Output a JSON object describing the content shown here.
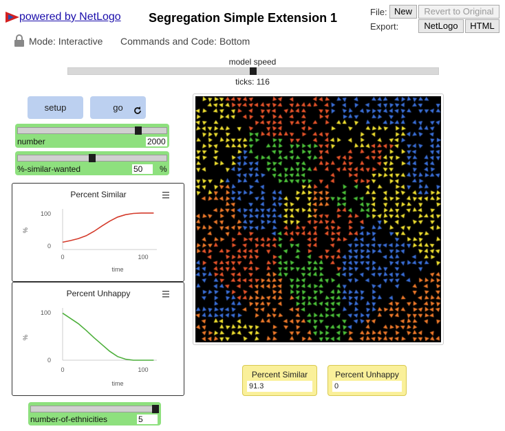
{
  "header": {
    "powered_by": "powered by NetLogo",
    "title": "Segregation Simple Extension 1",
    "file_label": "File:",
    "new_button": "New",
    "revert_button": "Revert to Original",
    "export_label": "Export:",
    "export_netlogo": "NetLogo",
    "export_html": "HTML",
    "mode_text": "Mode: Interactive",
    "commands_text": "Commands and Code: Bottom"
  },
  "speed": {
    "label": "model speed",
    "ticks_text": "ticks: 116",
    "value": 0.5
  },
  "buttons": {
    "setup": "setup",
    "go": "go"
  },
  "sliders": {
    "number": {
      "label": "number",
      "value": "2000",
      "unit": "",
      "fraction": 0.82
    },
    "similar": {
      "label": "%-similar-wanted",
      "value": "50",
      "unit": "%",
      "fraction": 0.5
    },
    "ethnicities": {
      "label": "number-of-ethnicities",
      "value": "5",
      "unit": "",
      "fraction": 1.0
    }
  },
  "plots": [
    {
      "title": "Percent Similar",
      "ylabel": "%",
      "xlabel": "time",
      "yticks": [
        "100",
        "0"
      ],
      "xticks": [
        "0",
        "100"
      ],
      "color": "#d43a2a",
      "series": [
        [
          0,
          18
        ],
        [
          10,
          22
        ],
        [
          20,
          27
        ],
        [
          30,
          34
        ],
        [
          40,
          45
        ],
        [
          50,
          58
        ],
        [
          60,
          70
        ],
        [
          70,
          80
        ],
        [
          80,
          86
        ],
        [
          90,
          89
        ],
        [
          100,
          90
        ],
        [
          110,
          90
        ],
        [
          116,
          90
        ]
      ]
    },
    {
      "title": "Percent Unhappy",
      "ylabel": "%",
      "xlabel": "time",
      "yticks": [
        "100",
        "0"
      ],
      "xticks": [
        "0",
        "100"
      ],
      "color": "#4caf3a",
      "series": [
        [
          0,
          90
        ],
        [
          10,
          80
        ],
        [
          20,
          70
        ],
        [
          30,
          57
        ],
        [
          40,
          43
        ],
        [
          50,
          30
        ],
        [
          60,
          17
        ],
        [
          70,
          7
        ],
        [
          80,
          2
        ],
        [
          90,
          0
        ],
        [
          100,
          0
        ],
        [
          116,
          0
        ]
      ]
    }
  ],
  "monitors": [
    {
      "label": "Percent Similar",
      "value": "91.3"
    },
    {
      "label": "Percent Unhappy",
      "value": "0"
    }
  ],
  "world": {
    "colors": [
      "#e8542a",
      "#f0e030",
      "#3a6fd8",
      "#4cc23a",
      "#f07a2a"
    ]
  }
}
